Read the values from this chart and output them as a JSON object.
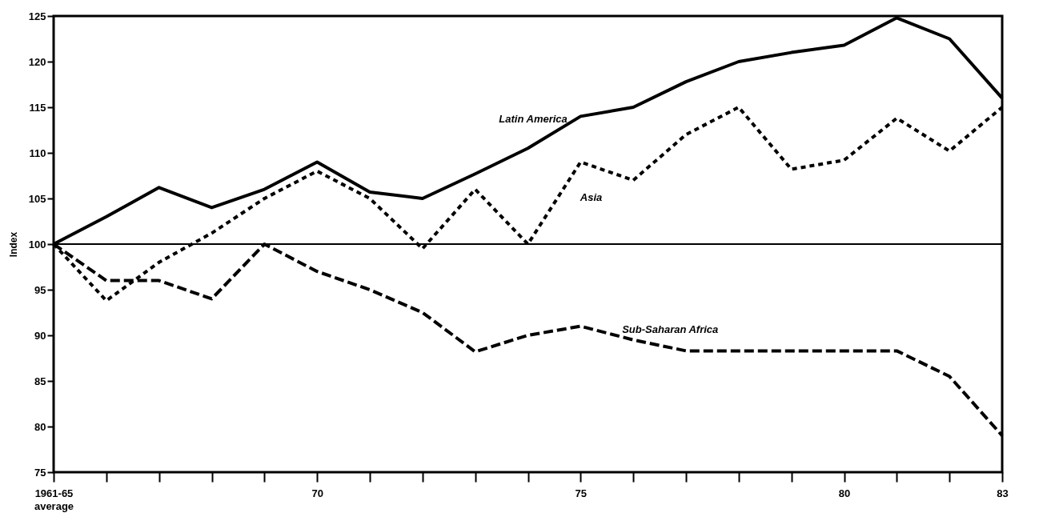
{
  "chart_data": {
    "type": "line",
    "ylabel": "Index",
    "categories": [
      "1961-65 average",
      null,
      null,
      null,
      null,
      "70",
      null,
      null,
      null,
      null,
      "75",
      null,
      null,
      null,
      null,
      "80",
      null,
      null,
      "83"
    ],
    "series": [
      {
        "name": "Latin America",
        "color": "#000000",
        "line_style": "solid",
        "values": [
          100,
          103,
          106.2,
          104,
          106,
          109,
          105.7,
          105,
          107.7,
          110.5,
          114,
          115,
          117.8,
          120,
          121,
          121.8,
          124.8,
          122.5,
          116
        ]
      },
      {
        "name": "Asia",
        "color": "#000000",
        "line_style": "dotted",
        "values": [
          100,
          93.8,
          98,
          101.2,
          105,
          108,
          105,
          99.5,
          106,
          100,
          109,
          107,
          112,
          115,
          108.2,
          109.2,
          113.8,
          110.2,
          115
        ]
      },
      {
        "name": "Sub-Saharan Africa",
        "color": "#000000",
        "line_style": "dashed",
        "values": [
          100,
          96,
          96,
          94,
          100,
          97,
          95,
          92.5,
          88.2,
          90,
          91,
          89.5,
          88.3,
          88.3,
          88.3,
          88.3,
          88.3,
          85.5,
          79
        ]
      }
    ],
    "ylim": [
      75,
      125
    ],
    "yticks": [
      75,
      80,
      85,
      90,
      95,
      100,
      105,
      110,
      115,
      120,
      125
    ],
    "ref_lines": [
      {
        "axis": "y",
        "value": 100,
        "color": "#000000"
      }
    ],
    "grid": false
  }
}
